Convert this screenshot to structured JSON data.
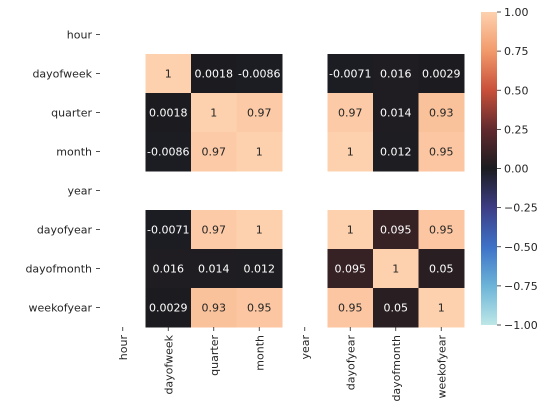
{
  "chart_data": {
    "type": "heatmap",
    "title": "",
    "x_labels": [
      "hour",
      "dayofweek",
      "quarter",
      "month",
      "year",
      "dayofyear",
      "dayofmonth",
      "weekofyear"
    ],
    "y_labels": [
      "hour",
      "dayofweek",
      "quarter",
      "month",
      "year",
      "dayofyear",
      "dayofmonth",
      "weekofyear"
    ],
    "values": [
      [
        null,
        null,
        null,
        null,
        null,
        null,
        null,
        null
      ],
      [
        null,
        1,
        0.0018,
        -0.0086,
        null,
        -0.0071,
        0.016,
        0.0029
      ],
      [
        null,
        0.0018,
        1,
        0.97,
        null,
        0.97,
        0.014,
        0.93
      ],
      [
        null,
        -0.0086,
        0.97,
        1,
        null,
        1,
        0.012,
        0.95
      ],
      [
        null,
        null,
        null,
        null,
        null,
        null,
        null,
        null
      ],
      [
        null,
        -0.0071,
        0.97,
        1,
        null,
        1,
        0.095,
        0.95
      ],
      [
        null,
        0.016,
        0.014,
        0.012,
        null,
        0.095,
        1,
        0.05
      ],
      [
        null,
        0.0029,
        0.93,
        0.95,
        null,
        0.95,
        0.05,
        1
      ]
    ],
    "annotations": [
      [
        null,
        null,
        null,
        null,
        null,
        null,
        null,
        null
      ],
      [
        null,
        "1",
        "0.0018",
        "-0.0086",
        null,
        "-0.0071",
        "0.016",
        "0.0029"
      ],
      [
        null,
        "0.0018",
        "1",
        "0.97",
        null,
        "0.97",
        "0.014",
        "0.93"
      ],
      [
        null,
        "-0.0086",
        "0.97",
        "1",
        null,
        "1",
        "0.012",
        "0.95"
      ],
      [
        null,
        null,
        null,
        null,
        null,
        null,
        null,
        null
      ],
      [
        null,
        "-0.0071",
        "0.97",
        "1",
        null,
        "1",
        "0.095",
        "0.95"
      ],
      [
        null,
        "0.016",
        "0.014",
        "0.012",
        null,
        "0.095",
        "1",
        "0.05"
      ],
      [
        null,
        "0.0029",
        "0.93",
        "0.95",
        null,
        "0.95",
        "0.05",
        "1"
      ]
    ],
    "vmin": -1,
    "vmax": 1,
    "colormap": "icefire",
    "colorbar": {
      "ticks": [
        1.0,
        0.75,
        0.5,
        0.25,
        0.0,
        -0.25,
        -0.5,
        -0.75,
        -1.0
      ],
      "tick_labels": [
        "1.00",
        "0.75",
        "0.50",
        "0.25",
        "0.00",
        "−0.25",
        "−0.50",
        "−0.75",
        "−1.00"
      ]
    },
    "colorbar_stops": [
      "#bde7e7",
      "#6cb4d8",
      "#3d72c7",
      "#3d3d85",
      "#1b1c20",
      "#612a2e",
      "#c8503a",
      "#f29a6b",
      "#fdd1ae"
    ],
    "xlabel": "",
    "ylabel": "",
    "grid": false,
    "legend": "colorbar-right"
  }
}
